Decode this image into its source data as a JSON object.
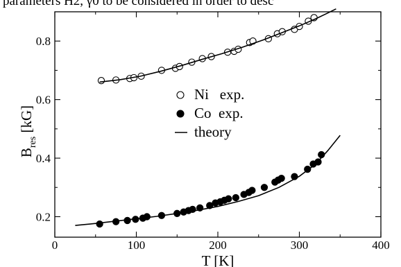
{
  "header": {
    "text": "parameters H2, γ0 to be considered in order to desc"
  },
  "chart_data": {
    "type": "scatter",
    "xlabel": "T [K]",
    "ylabel_main": "B",
    "ylabel_sub": "res",
    "ylabel_unit": " [kG]",
    "xlim": [
      0,
      400
    ],
    "ylim": [
      0.13,
      0.9
    ],
    "x_ticks": [
      0,
      100,
      200,
      300,
      400
    ],
    "x_tick_labels": [
      "0",
      "100",
      "200",
      "300",
      "400"
    ],
    "y_ticks": [
      0.2,
      0.4,
      0.6,
      0.8
    ],
    "y_tick_labels": [
      "0.2",
      "0.4",
      "0.6",
      "0.8"
    ],
    "grid": false,
    "legend_position": "center",
    "series": [
      {
        "name": "Ni   exp.",
        "marker": "open-circle",
        "points": [
          [
            57,
            0.665
          ],
          [
            75,
            0.667
          ],
          [
            92,
            0.672
          ],
          [
            97,
            0.675
          ],
          [
            106,
            0.68
          ],
          [
            131,
            0.7
          ],
          [
            148,
            0.707
          ],
          [
            153,
            0.713
          ],
          [
            168,
            0.728
          ],
          [
            181,
            0.74
          ],
          [
            192,
            0.747
          ],
          [
            212,
            0.762
          ],
          [
            220,
            0.765
          ],
          [
            225,
            0.772
          ],
          [
            239,
            0.795
          ],
          [
            243,
            0.8
          ],
          [
            262,
            0.808
          ],
          [
            273,
            0.825
          ],
          [
            279,
            0.832
          ],
          [
            294,
            0.84
          ],
          [
            300,
            0.85
          ],
          [
            311,
            0.868
          ],
          [
            318,
            0.88
          ]
        ]
      },
      {
        "name": "Co  exp.",
        "marker": "filled-circle",
        "points": [
          [
            55,
            0.175
          ],
          [
            75,
            0.183
          ],
          [
            89,
            0.187
          ],
          [
            99,
            0.191
          ],
          [
            108,
            0.195
          ],
          [
            113,
            0.2
          ],
          [
            131,
            0.204
          ],
          [
            150,
            0.211
          ],
          [
            158,
            0.216
          ],
          [
            164,
            0.221
          ],
          [
            169,
            0.225
          ],
          [
            178,
            0.23
          ],
          [
            190,
            0.238
          ],
          [
            197,
            0.247
          ],
          [
            203,
            0.251
          ],
          [
            208,
            0.256
          ],
          [
            213,
            0.261
          ],
          [
            222,
            0.265
          ],
          [
            232,
            0.276
          ],
          [
            238,
            0.283
          ],
          [
            242,
            0.29
          ],
          [
            257,
            0.3
          ],
          [
            270,
            0.318
          ],
          [
            274,
            0.325
          ],
          [
            278,
            0.331
          ],
          [
            294,
            0.337
          ],
          [
            310,
            0.362
          ],
          [
            317,
            0.38
          ],
          [
            323,
            0.387
          ],
          [
            327,
            0.412
          ]
        ]
      },
      {
        "name": "theory",
        "marker": "line",
        "points": [
          [
            55,
            0.66
          ],
          [
            80,
            0.668
          ],
          [
            105,
            0.68
          ],
          [
            130,
            0.697
          ],
          [
            155,
            0.716
          ],
          [
            180,
            0.737
          ],
          [
            205,
            0.757
          ],
          [
            230,
            0.779
          ],
          [
            255,
            0.803
          ],
          [
            280,
            0.83
          ],
          [
            300,
            0.852
          ],
          [
            320,
            0.876
          ],
          [
            335,
            0.896
          ],
          [
            345,
            0.91
          ]
        ]
      },
      {
        "name": "theory",
        "marker": "line",
        "points": [
          [
            25,
            0.17
          ],
          [
            50,
            0.177
          ],
          [
            75,
            0.185
          ],
          [
            100,
            0.193
          ],
          [
            125,
            0.201
          ],
          [
            150,
            0.211
          ],
          [
            175,
            0.222
          ],
          [
            200,
            0.235
          ],
          [
            225,
            0.252
          ],
          [
            250,
            0.272
          ],
          [
            275,
            0.3
          ],
          [
            300,
            0.338
          ],
          [
            320,
            0.38
          ],
          [
            335,
            0.426
          ],
          [
            350,
            0.478
          ]
        ]
      }
    ],
    "legend": [
      {
        "label": "Ni   exp.",
        "marker": "open-circle"
      },
      {
        "label": "Co  exp.",
        "marker": "filled-circle"
      },
      {
        "label": "theory",
        "marker": "line"
      }
    ]
  }
}
